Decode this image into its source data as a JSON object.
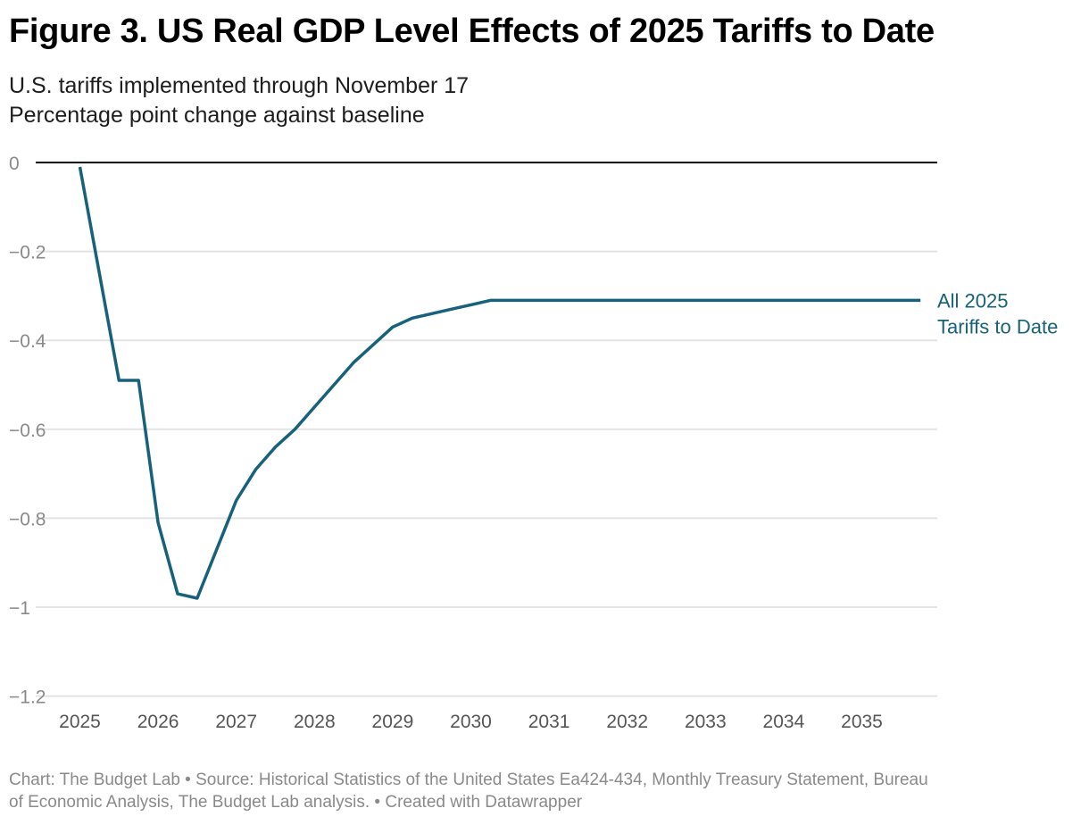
{
  "header": {
    "title": "Figure 3. US Real GDP Level Effects of 2025 Tariffs to Date",
    "subtitle_lines": [
      "U.S. tariffs implemented through November 17",
      "Percentage point change against baseline"
    ]
  },
  "chart_data": {
    "type": "line",
    "title": "Figure 3. US Real GDP Level Effects of 2025 Tariffs to Date",
    "subtitle": "U.S. tariffs implemented through November 17",
    "ylabel": "Percentage point change against baseline",
    "xlabel": "",
    "xlim": [
      2025,
      2035.75
    ],
    "ylim": [
      -1.2,
      0
    ],
    "grid": true,
    "y_ticks": [
      0,
      -0.2,
      -0.4,
      -0.6,
      -0.8,
      -1,
      -1.2
    ],
    "y_tick_labels": [
      "0",
      "−0.2",
      "−0.4",
      "−0.6",
      "−0.8",
      "−1",
      "−1.2"
    ],
    "x_ticks": [
      2025,
      2026,
      2027,
      2028,
      2029,
      2030,
      2031,
      2032,
      2033,
      2034,
      2035
    ],
    "x_tick_labels": [
      "2025",
      "2026",
      "2027",
      "2028",
      "2029",
      "2030",
      "2031",
      "2032",
      "2033",
      "2034",
      "2035"
    ],
    "colors": {
      "line": "#17627a",
      "label": "#17627a",
      "grid": "#e3e3e3",
      "zero_line": "#000000"
    },
    "series": [
      {
        "name": "All 2025 Tariffs to Date",
        "label_lines": [
          "All 2025",
          "Tariffs to Date"
        ],
        "x": [
          2025.0,
          2025.5,
          2025.75,
          2026.0,
          2026.25,
          2026.5,
          2027.0,
          2027.25,
          2027.5,
          2027.75,
          2028.0,
          2028.25,
          2028.5,
          2029.0,
          2029.25,
          2029.5,
          2029.75,
          2030.0,
          2030.25,
          2035.75
        ],
        "y": [
          -0.01,
          -0.49,
          -0.49,
          -0.81,
          -0.97,
          -0.98,
          -0.76,
          -0.69,
          -0.64,
          -0.6,
          -0.55,
          -0.5,
          -0.45,
          -0.37,
          -0.35,
          -0.34,
          -0.33,
          -0.32,
          -0.31,
          -0.31
        ]
      }
    ]
  },
  "footer": {
    "lines": [
      "Chart: The Budget Lab • Source: Historical Statistics of the United States Ea424-434, Monthly Treasury Statement, Bureau",
      "of Economic Analysis, The Budget Lab analysis.  • Created with Datawrapper"
    ]
  }
}
